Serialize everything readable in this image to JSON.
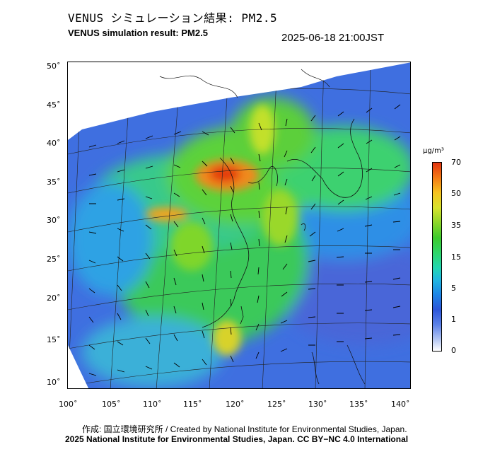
{
  "header": {
    "title_jp": "VENUS シミュレーション結果: PM2.5",
    "title_en": "VENUS simulation result: PM2.5",
    "timestamp": "2025-06-18 21:00JST"
  },
  "map": {
    "lat_ticks": [
      "50˚",
      "45˚",
      "40˚",
      "35˚",
      "30˚",
      "25˚",
      "20˚",
      "15˚",
      "10˚"
    ],
    "lon_ticks": [
      "100˚",
      "105˚",
      "110˚",
      "115˚",
      "120˚",
      "125˚",
      "130˚",
      "135˚",
      "140˚"
    ],
    "layers": [
      "pm25-concentration",
      "wind-vectors",
      "coastlines",
      "graticule"
    ]
  },
  "legend": {
    "unit": "μg/m³",
    "labels": [
      "70",
      "50",
      "35",
      "15",
      "5",
      "1",
      "0"
    ],
    "colors": [
      "#e23410",
      "#f47a15",
      "#f6c31f",
      "#d8e32c",
      "#3dcb2d",
      "#22d6b2",
      "#1d86e6",
      "#2c56d9",
      "#b3c6f2",
      "#ffffff"
    ]
  },
  "footer": {
    "credit_line": "作成: 国立環境研究所 / Created by National Institute for Environmental Studies, Japan.",
    "license_line": "2025 National Institute for Environmental Studies, Japan. CC BY−NC 4.0 International"
  }
}
